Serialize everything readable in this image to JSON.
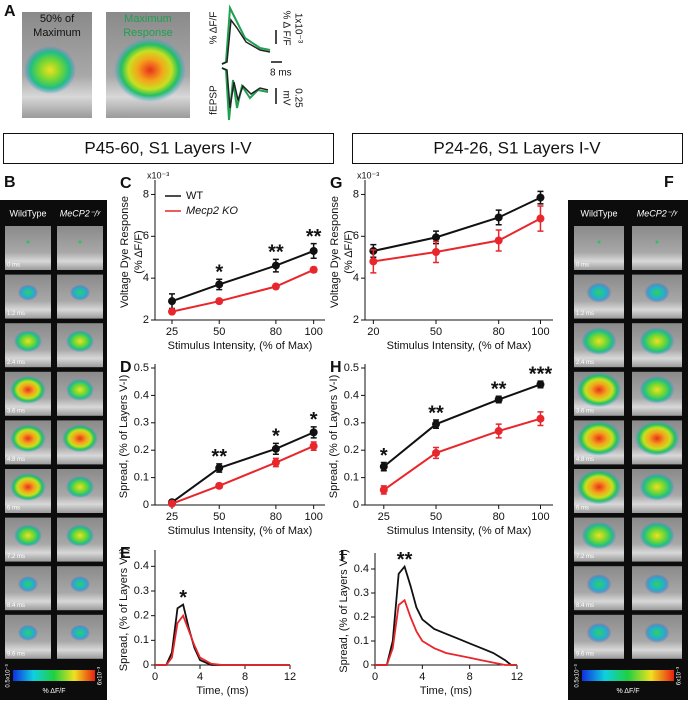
{
  "panel_a": {
    "letter": "A",
    "image_labels": [
      [
        "50% of",
        "Maximum"
      ],
      [
        "Maximum",
        "Response"
      ]
    ],
    "dff_label": "% ΔF/F",
    "scale_dff": [
      "1x10⁻³",
      "% Δ F/F"
    ],
    "scale_time": "8 ms",
    "fepsp_label": "fEPSP",
    "scale_mv": [
      "0.25",
      "mV"
    ]
  },
  "headers": [
    "P45-60, S1 Layers I-V",
    "P24-26, S1 Layers I-V"
  ],
  "image_panels": [
    {
      "letter": "B",
      "columns": [
        "WildType",
        "MeCP2⁻/ʸ"
      ],
      "times": [
        "0 ms",
        "1.2 ms",
        "2.4 ms",
        "3.6 ms",
        "4.8 ms",
        "6 ms",
        "7.2 ms",
        "8.4 ms",
        "9.6 ms"
      ],
      "colorbar_min": "0.5x10⁻³",
      "colorbar_max": "6x10⁻³",
      "colorbar_label": "% ΔF/F"
    },
    {
      "letter": "F",
      "columns": [
        "WildType",
        "MeCP2⁻/ʸ"
      ],
      "times": [
        "0 ms",
        "1.2 ms",
        "2.4 ms",
        "3.6 ms",
        "4.8 ms",
        "6 ms",
        "7.2 ms",
        "8.4 ms",
        "9.6 ms"
      ],
      "colorbar_min": "0.5x10⁻³",
      "colorbar_max": "6x10⁻³",
      "colorbar_label": "% ΔF/F"
    }
  ],
  "chart_data": [
    {
      "type": "line",
      "letter": "C",
      "x": [
        25,
        50,
        80,
        100
      ],
      "xlim": [
        16,
        106
      ],
      "xticks": [
        25,
        50,
        80,
        100
      ],
      "ylim": [
        2,
        8.5
      ],
      "yticks": [
        2,
        4,
        6,
        8
      ],
      "y_multiplier": "x10⁻³",
      "ylabel": [
        "Voltage Dye Response",
        "(% ΔF/F)"
      ],
      "xlabel": "Stimulus Intensity, (% of Max)",
      "markers": true,
      "legend": "upper left",
      "series": [
        {
          "name": "WT",
          "color": "#111111",
          "values": [
            2.9,
            3.7,
            4.6,
            5.3
          ],
          "errors": [
            0.35,
            0.25,
            0.3,
            0.35
          ]
        },
        {
          "name": "Mecp2 KO",
          "color": "#e8262b",
          "values": [
            2.4,
            2.9,
            3.6,
            4.4
          ],
          "errors": [
            0.1,
            0.1,
            0.1,
            0.12
          ]
        }
      ],
      "annotations": [
        {
          "x": 50,
          "text": "*"
        },
        {
          "x": 80,
          "text": "**"
        },
        {
          "x": 100,
          "text": "**"
        }
      ]
    },
    {
      "type": "line",
      "letter": "D",
      "x": [
        25,
        50,
        80,
        100
      ],
      "xlim": [
        16,
        106
      ],
      "xticks": [
        25,
        50,
        80,
        100
      ],
      "ylim": [
        0,
        0.5
      ],
      "yticks": [
        0,
        0.1,
        0.2,
        0.3,
        0.4,
        0.5
      ],
      "ylabel": [
        "Spread, (% of Layers V-I)"
      ],
      "xlabel": "Stimulus Intensity, (% of Max)",
      "markers": true,
      "series": [
        {
          "name": "WT",
          "color": "#111111",
          "values": [
            0.01,
            0.135,
            0.205,
            0.265
          ],
          "errors": [
            0.005,
            0.015,
            0.02,
            0.02
          ]
        },
        {
          "name": "Mecp2 KO",
          "color": "#e8262b",
          "values": [
            0.005,
            0.07,
            0.155,
            0.215
          ],
          "errors": [
            0.003,
            0.008,
            0.015,
            0.015
          ]
        }
      ],
      "annotations": [
        {
          "x": 50,
          "text": "**"
        },
        {
          "x": 80,
          "text": "*"
        },
        {
          "x": 100,
          "text": "*"
        }
      ]
    },
    {
      "type": "line",
      "letter": "E",
      "x": [
        0,
        1,
        1.5,
        2,
        2.5,
        3,
        3.5,
        4,
        5,
        6,
        8,
        10,
        12
      ],
      "xlim": [
        0,
        12
      ],
      "xticks": [
        0,
        4,
        8,
        12
      ],
      "ylim": [
        0,
        0.45
      ],
      "yticks": [
        0,
        0.1,
        0.2,
        0.3,
        0.4
      ],
      "ylabel": [
        "Spread, (% of Layers V-I)"
      ],
      "xlabel": "Time, (ms)",
      "markers": false,
      "series": [
        {
          "name": "WT",
          "color": "#111111",
          "values": [
            0,
            0,
            0.05,
            0.23,
            0.245,
            0.15,
            0.07,
            0.02,
            0,
            0,
            0,
            0,
            0
          ]
        },
        {
          "name": "Mecp2 KO",
          "color": "#e8262b",
          "values": [
            0,
            0,
            0.03,
            0.17,
            0.2,
            0.14,
            0.08,
            0.03,
            0.005,
            0,
            0,
            0,
            0
          ]
        }
      ],
      "annotations": [
        {
          "x": 2.5,
          "text": "*"
        }
      ]
    },
    {
      "type": "line",
      "letter": "G",
      "x": [
        20,
        50,
        80,
        100
      ],
      "xlim": [
        16,
        106
      ],
      "xticks": [
        20,
        50,
        80,
        100
      ],
      "ylim": [
        2,
        8.5
      ],
      "yticks": [
        2,
        4,
        6,
        8
      ],
      "y_multiplier": "x10⁻³",
      "ylabel": [
        "Voltage Dye Response",
        "(% ΔF/F)"
      ],
      "xlabel": "Stimulus Intensity, (% of Max)",
      "markers": true,
      "series": [
        {
          "name": "WT",
          "color": "#111111",
          "values": [
            5.3,
            5.95,
            6.9,
            7.85
          ],
          "errors": [
            0.3,
            0.3,
            0.35,
            0.3
          ]
        },
        {
          "name": "Mecp2 KO",
          "color": "#e8262b",
          "values": [
            4.8,
            5.25,
            5.8,
            6.85
          ],
          "errors": [
            0.55,
            0.5,
            0.5,
            0.6
          ]
        }
      ],
      "annotations": []
    },
    {
      "type": "line",
      "letter": "H",
      "x": [
        25,
        50,
        80,
        100
      ],
      "xlim": [
        16,
        106
      ],
      "xticks": [
        25,
        50,
        80,
        100
      ],
      "ylim": [
        0,
        0.5
      ],
      "yticks": [
        0,
        0.1,
        0.2,
        0.3,
        0.4,
        0.5
      ],
      "ylabel": [
        "Spread, (% of Layers V-I)"
      ],
      "xlabel": "Stimulus Intensity, (% of Max)",
      "markers": true,
      "series": [
        {
          "name": "WT",
          "color": "#111111",
          "values": [
            0.14,
            0.295,
            0.385,
            0.44
          ],
          "errors": [
            0.015,
            0.015,
            0.012,
            0.012
          ]
        },
        {
          "name": "Mecp2 KO",
          "color": "#e8262b",
          "values": [
            0.055,
            0.19,
            0.27,
            0.315
          ],
          "errors": [
            0.015,
            0.02,
            0.025,
            0.025
          ]
        }
      ],
      "annotations": [
        {
          "x": 25,
          "text": "*"
        },
        {
          "x": 50,
          "text": "**"
        },
        {
          "x": 80,
          "text": "**"
        },
        {
          "x": 100,
          "text": "***"
        }
      ]
    },
    {
      "type": "line",
      "letter": "I",
      "x": [
        0,
        1,
        1.5,
        2,
        2.5,
        3,
        3.5,
        4,
        5,
        6,
        7,
        8,
        9,
        10,
        11,
        11.5,
        12
      ],
      "xlim": [
        0,
        12
      ],
      "xticks": [
        0,
        4,
        8,
        12
      ],
      "ylim": [
        0,
        0.45
      ],
      "yticks": [
        0,
        0.1,
        0.2,
        0.3,
        0.4
      ],
      "ylabel": [
        "Spread, (% of Layers V-I)"
      ],
      "xlabel": "Time, (ms)",
      "markers": false,
      "series": [
        {
          "name": "WT",
          "color": "#111111",
          "values": [
            0,
            0,
            0.1,
            0.38,
            0.41,
            0.33,
            0.24,
            0.19,
            0.15,
            0.13,
            0.11,
            0.09,
            0.07,
            0.05,
            0.02,
            0,
            0
          ]
        },
        {
          "name": "Mecp2 KO",
          "color": "#e8262b",
          "values": [
            0,
            0,
            0.07,
            0.25,
            0.27,
            0.2,
            0.14,
            0.1,
            0.07,
            0.05,
            0.04,
            0.03,
            0.02,
            0.01,
            0,
            0,
            0
          ]
        }
      ],
      "annotations": [
        {
          "x": 2.5,
          "text": "**"
        }
      ]
    }
  ]
}
